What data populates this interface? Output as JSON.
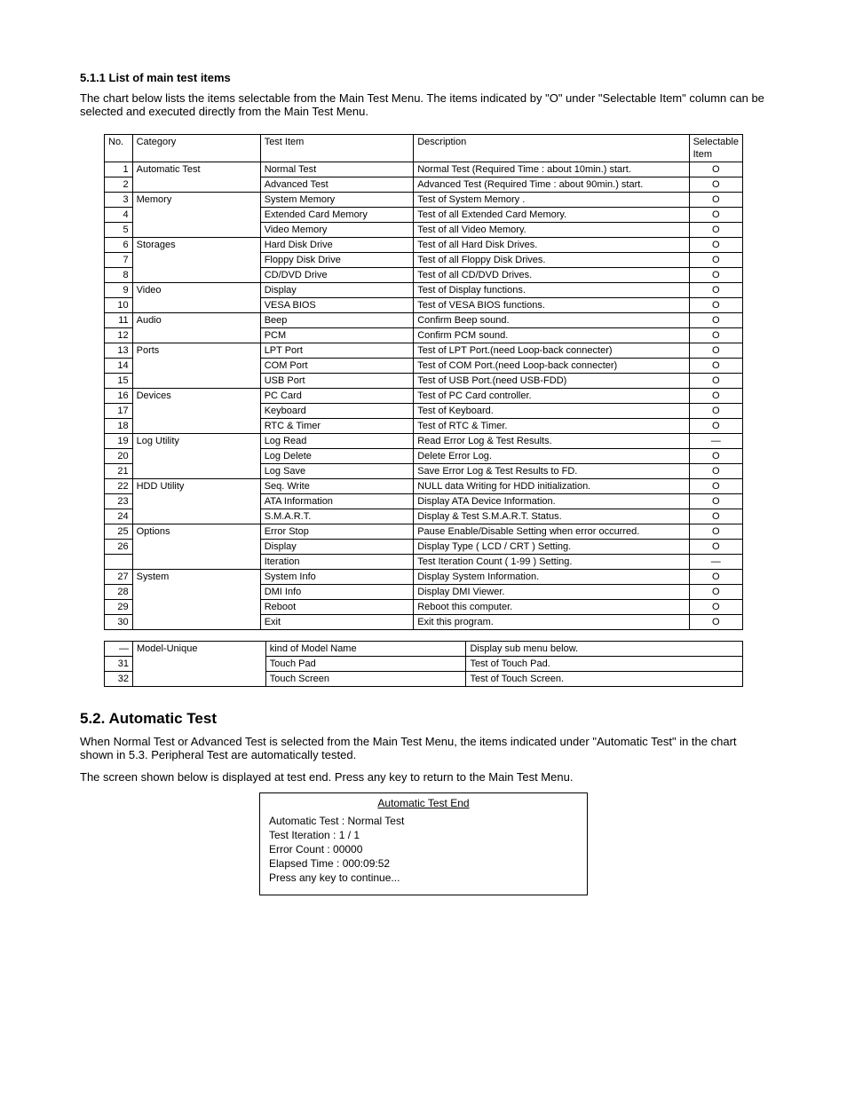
{
  "section511": {
    "heading": "5.1.1 List of main test items",
    "intro": "The chart below lists the items selectable from the Main Test Menu. The items indicated by \"O\" under \"Selectable Item\" column can be selected and executed directly from the Main Test Menu."
  },
  "table1": {
    "headers": [
      "No.",
      "Category",
      "Test Item",
      "Description",
      "Selectable Item"
    ],
    "rows": [
      {
        "no": "1",
        "cat": "Automatic Test",
        "item": "Normal Test",
        "desc": "Normal Test (Required Time : about 10min.) start.",
        "sel": "O",
        "catRowspan": 2
      },
      {
        "no": "2",
        "item": "Advanced Test",
        "desc": "Advanced Test (Required Time : about 90min.) start.",
        "sel": "O"
      },
      {
        "no": "3",
        "cat": "Memory",
        "item": "System Memory",
        "desc": "Test of System Memory .",
        "sel": "O",
        "catRowspan": 3
      },
      {
        "no": "4",
        "item": "Extended Card Memory",
        "desc": "Test of all Extended Card Memory.",
        "sel": "O"
      },
      {
        "no": "5",
        "item": "Video Memory",
        "desc": "Test of all Video Memory.",
        "sel": "O"
      },
      {
        "no": "6",
        "cat": "Storages",
        "item": "Hard Disk Drive",
        "desc": "Test of all Hard Disk Drives.",
        "sel": "O",
        "catRowspan": 3
      },
      {
        "no": "7",
        "item": "Floppy Disk Drive",
        "desc": "Test of all Floppy Disk Drives.",
        "sel": "O"
      },
      {
        "no": "8",
        "item": "CD/DVD Drive",
        "desc": "Test of all CD/DVD Drives.",
        "sel": "O"
      },
      {
        "no": "9",
        "cat": "Video",
        "item": "Display",
        "desc": "Test of Display functions.",
        "sel": "O",
        "catRowspan": 2
      },
      {
        "no": "10",
        "item": "VESA BIOS",
        "desc": "Test of VESA BIOS functions.",
        "sel": "O"
      },
      {
        "no": "11",
        "cat": "Audio",
        "item": "Beep",
        "desc": "Confirm Beep sound.",
        "sel": "O",
        "catRowspan": 2
      },
      {
        "no": "12",
        "item": "PCM",
        "desc": "Confirm PCM sound.",
        "sel": "O"
      },
      {
        "no": "13",
        "cat": "Ports",
        "item": "LPT Port",
        "desc": "Test of LPT Port.(need Loop-back connecter)",
        "sel": "O",
        "catRowspan": 3
      },
      {
        "no": "14",
        "item": "COM Port",
        "desc": "Test of COM Port.(need Loop-back connecter)",
        "sel": "O"
      },
      {
        "no": "15",
        "item": "USB Port",
        "desc": "Test of USB Port.(need USB-FDD)",
        "sel": "O"
      },
      {
        "no": "16",
        "cat": "Devices",
        "item": "PC Card",
        "desc": "Test of PC Card controller.",
        "sel": "O",
        "catRowspan": 3
      },
      {
        "no": "17",
        "item": "Keyboard",
        "desc": "Test of Keyboard.",
        "sel": "O"
      },
      {
        "no": "18",
        "item": "RTC & Timer",
        "desc": "Test of RTC & Timer.",
        "sel": "O"
      },
      {
        "no": "19",
        "cat": "Log Utility",
        "item": "Log Read",
        "desc": "Read Error Log & Test Results.",
        "sel": "—",
        "catRowspan": 3
      },
      {
        "no": "20",
        "item": "Log Delete",
        "desc": "Delete Error Log.",
        "sel": "O"
      },
      {
        "no": "21",
        "item": "Log Save",
        "desc": "Save Error Log & Test Results to FD.",
        "sel": "O"
      },
      {
        "no": "22",
        "cat": "HDD Utility",
        "item": "Seq. Write",
        "desc": "NULL data Writing for HDD initialization.",
        "sel": "O",
        "catRowspan": 3
      },
      {
        "no": "23",
        "item": "ATA Information",
        "desc": "Display ATA Device Information.",
        "sel": "O"
      },
      {
        "no": "24",
        "item": "S.M.A.R.T.",
        "desc": "Display & Test S.M.A.R.T. Status.",
        "sel": "O"
      },
      {
        "no": "25",
        "cat": "Options",
        "item": "Error Stop",
        "desc": "Pause Enable/Disable Setting when error occurred.",
        "sel": "O",
        "catRowspan": 3
      },
      {
        "no": "26",
        "item": "Display",
        "desc": "Display Type ( LCD / CRT ) Setting.",
        "sel": "O"
      },
      {
        "no": "",
        "item": "Iteration",
        "desc": "Test Iteration Count ( 1-99 ) Setting.",
        "sel": "—"
      },
      {
        "no": "27",
        "cat": "System",
        "item": "System Info",
        "desc": "Display System Information.",
        "sel": "O",
        "catRowspan": 4
      },
      {
        "no": "28",
        "item": "DMI Info",
        "desc": "Display DMI Viewer.",
        "sel": "O"
      },
      {
        "no": "29",
        "item": "Reboot",
        "desc": "Reboot this computer.",
        "sel": "O"
      },
      {
        "no": "30",
        "item": "Exit",
        "desc": "Exit this program.",
        "sel": "O"
      }
    ]
  },
  "table2": {
    "rows": [
      {
        "no": "—",
        "cat": "Model-Unique",
        "item": "kind of Model Name",
        "desc": "Display sub menu below."
      },
      {
        "no": "31",
        "cat": "",
        "item": "Touch Pad",
        "desc": "Test of Touch Pad."
      },
      {
        "no": "32",
        "cat": "",
        "item": "Touch Screen",
        "desc": "Test of Touch Screen."
      }
    ]
  },
  "section52": {
    "heading": "5.2. Automatic Test",
    "p1": "When Normal Test or Advanced Test is selected from the Main Test Menu, the items indicated under \"Automatic Test\" in the chart shown in 5.3. Peripheral Test are automatically tested.",
    "p2": "The screen shown below is displayed at test end. Press any key to return to the Main Test Menu.",
    "boxTitle": "Automatic Test End",
    "boxItems": [
      "Automatic Test : Normal Test",
      "Test Iteration : 1 / 1",
      "Error Count     : 00000",
      "Elapsed Time   : 000:09:52",
      "Press any key to continue..."
    ]
  }
}
